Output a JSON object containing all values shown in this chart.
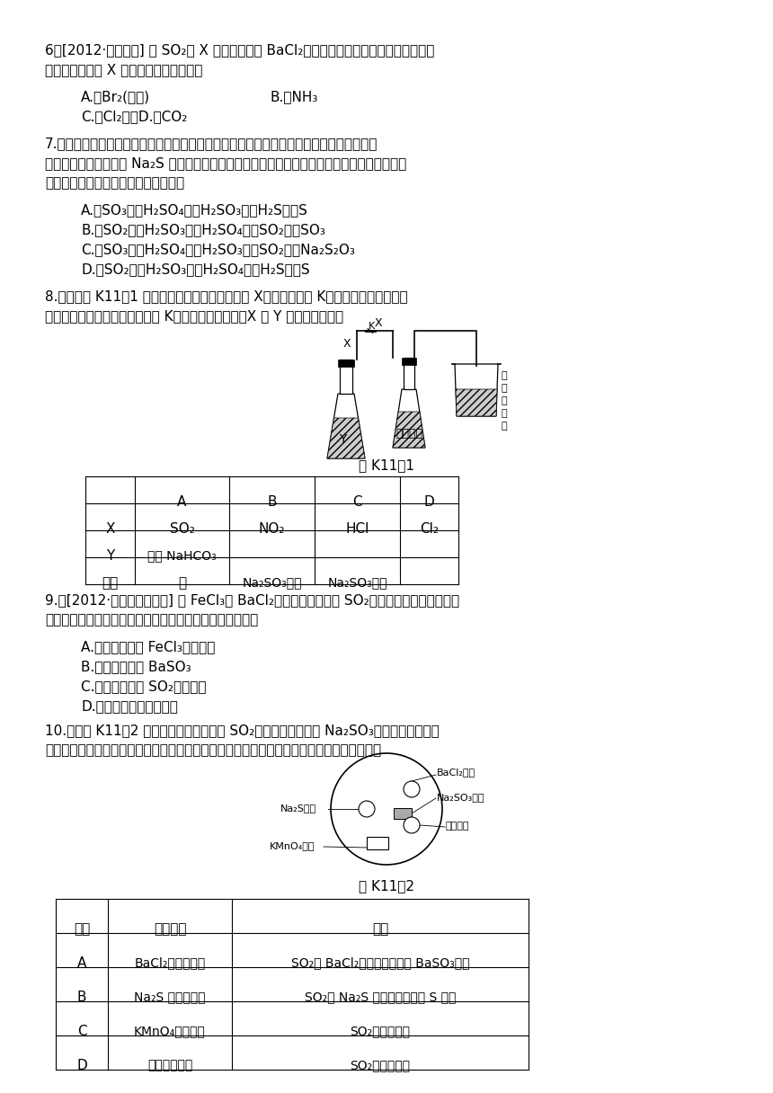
{
  "bg_color": "#ffffff",
  "text_color": "#000000",
  "page_width": 8.6,
  "page_height": 12.16,
  "q6_line1": "6．[2012·杭州模拟] 将 SO₂和 X 气体分别通入 BaCl₂溶液，未见沉淠生成，若同时通入，",
  "q6_line2": "有沉淠生成，则 X 气体不可能是（　　）",
  "q6_A": "A.　Br₂(蒋气)",
  "q6_B": "B.　NH₃",
  "q6_CD": "C.　Cl₂　　D.　CO₂",
  "q7_line1": "7.　硫黄在空气中燃烧生成气体甲，甲溶于水得溶液乙，向乙溶液中滴加溩水，溩水褪色，",
  "q7_line2": "乙变成丙。在丙里加入 Na₂S 生成气体丁，把丁通入乙得到沉淠戊。甲、乙、丙、丁、戊均含有",
  "q7_line3": "硫元素，则它们正确的顺序是（　　）",
  "q7_A": "A.　SO₃　　H₂SO₄　　H₂SO₃　　H₂S　　S",
  "q7_B": "B.　SO₂　　H₂SO₃　　H₂SO₄　　SO₂　　SO₃",
  "q7_C": "C.　SO₃　　H₂SO₄　　H₂SO₃　　SO₂　　Na₂S₂O₃",
  "q7_D": "D.　SO₂　　H₂SO₃　　H₂SO₄　　H₂S　　S",
  "q8_line1": "8.　向如图 K11－1 所示的装置中缓慢地通入气体 X，若关闭活塞 K，则品红溶液无变化而",
  "q8_line2": "澄清石灰水变浑激；若打开活塞 K，则品红溶液褪色。X 和 Y 可能是（　　）",
  "fig1_caption": "图 K11－1",
  "q9_line1": "9.　[2012·杭师大附中月考] 往 FeCl₃和 BaCl₂的混合溶液中通入 SO₂，溶液颜色由棕黄色变成",
  "q9_line2": "浅绻色，同时有白色沉淠产生。下列说法正确的是（　　）",
  "q9_A": "A.　该实验表明 FeCl₃有还原性",
  "q9_B": "B.　白色沉淠为 BaSO₃",
  "q9_C": "C.　该实验表明 SO₂有漂白性",
  "q9_D": "D.　反应后溶液酸性增强",
  "q10_line1": "10.　如图 K11－2 所示，利用培养盘探究 SO₂的性质。实验时向 Na₂SO₃固体上滴几滴浓硫",
  "q10_line2": "酸，立即用另一表面盘扣在上面。下表中对实验现象的描述或所做的解释不正确的是（　　）",
  "fig2_caption": "图 K11－2",
  "t2_h1": "选项",
  "t2_h2": "实验现象",
  "t2_h3": "解释",
  "t2_A_phen": "BaCl₂溶液变浑激",
  "t2_A_expl": "SO₂与 BaCl₂溶液反应产生了 BaSO₃沉淠",
  "t2_B_phen": "Na₂S 溶液变浑激",
  "t2_B_expl": "SO₂与 Na₂S 溶液反应产生了 S 单质",
  "t2_C_phen": "KMnO₄溶液褪色",
  "t2_C_expl": "SO₂具有还原性",
  "t2_D_phen": "品红溶液褪色",
  "t2_D_expl": "SO₂具有漂白性"
}
